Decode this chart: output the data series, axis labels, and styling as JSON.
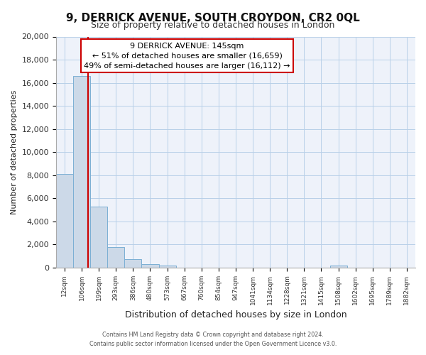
{
  "title": "9, DERRICK AVENUE, SOUTH CROYDON, CR2 0QL",
  "subtitle": "Size of property relative to detached houses in London",
  "xlabel": "Distribution of detached houses by size in London",
  "ylabel": "Number of detached properties",
  "bar_color": "#ccd9e8",
  "bar_edge_color": "#7bafd4",
  "background_color": "#ffffff",
  "plot_bg_color": "#eef2fa",
  "grid_color": "#b8cfe8",
  "categories": [
    "12sqm",
    "106sqm",
    "199sqm",
    "293sqm",
    "386sqm",
    "480sqm",
    "573sqm",
    "667sqm",
    "760sqm",
    "854sqm",
    "947sqm",
    "1041sqm",
    "1134sqm",
    "1228sqm",
    "1321sqm",
    "1415sqm",
    "1508sqm",
    "1602sqm",
    "1695sqm",
    "1789sqm",
    "1882sqm"
  ],
  "values": [
    8100,
    16600,
    5300,
    1750,
    750,
    300,
    200,
    0,
    0,
    0,
    0,
    0,
    0,
    0,
    0,
    0,
    150,
    0,
    0,
    0,
    0
  ],
  "ylim": [
    0,
    20000
  ],
  "yticks": [
    0,
    2000,
    4000,
    6000,
    8000,
    10000,
    12000,
    14000,
    16000,
    18000,
    20000
  ],
  "property_line_x": 1.39,
  "property_line_color": "#cc0000",
  "annotation_title": "9 DERRICK AVENUE: 145sqm",
  "annotation_line1": "← 51% of detached houses are smaller (16,659)",
  "annotation_line2": "49% of semi-detached houses are larger (16,112) →",
  "annotation_box_color": "#ffffff",
  "annotation_border_color": "#cc0000",
  "footer1": "Contains HM Land Registry data © Crown copyright and database right 2024.",
  "footer2": "Contains public sector information licensed under the Open Government Licence v3.0."
}
